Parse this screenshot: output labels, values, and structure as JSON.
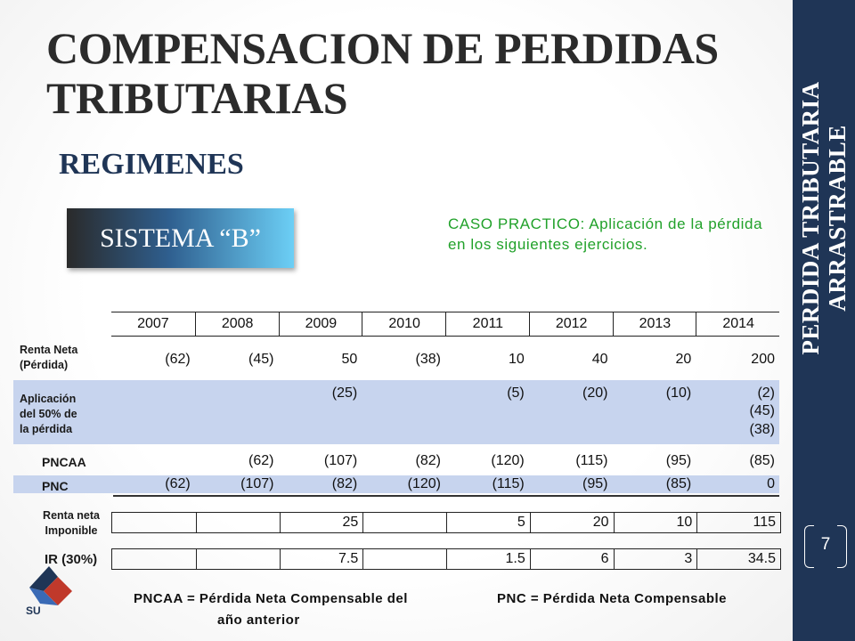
{
  "title": "COMPENSACION DE PERDIDAS TRIBUTARIAS",
  "subtitle": "REGIMENES",
  "sistema_label": "SISTEMA “B”",
  "caso_text": "CASO PRACTICO: Aplicación de la pérdida en los siguientes ejercicios.",
  "sidebar": {
    "line1": "PERDIDA TRIBUTARIA",
    "line2": "ARRASTRABLE",
    "page_number": "7"
  },
  "table": {
    "years": [
      "2007",
      "2008",
      "2009",
      "2010",
      "2011",
      "2012",
      "2013",
      "2014"
    ],
    "rows": {
      "renta_neta": {
        "label_line1": "Renta Neta",
        "label_line2": "(Pérdida)",
        "values": [
          "(62)",
          "(45)",
          "50",
          "(38)",
          "10",
          "40",
          "20",
          "200"
        ]
      },
      "aplicacion": {
        "label_line1": "Aplicación",
        "label_line2": "del 50% de",
        "label_line3": "la pérdida",
        "values": [
          "",
          "",
          "(25)",
          "",
          "(5)",
          "(20)",
          "(10)",
          "(2)"
        ],
        "extra_2014": [
          "(45)",
          "(38)"
        ]
      },
      "pncaa": {
        "label": "PNCAA",
        "values": [
          "",
          "(62)",
          "(107)",
          "(82)",
          "(120)",
          "(115)",
          "(95)",
          "(85)"
        ]
      },
      "pnc": {
        "label": "PNC",
        "values": [
          "(62)",
          "(107)",
          "(82)",
          "(120)",
          "(115)",
          "(95)",
          "(85)",
          "0"
        ]
      },
      "renta_imponible": {
        "label_line1": "Renta neta",
        "label_line2": "Imponible",
        "values": [
          "",
          "",
          "25",
          "",
          "5",
          "20",
          "10",
          "115"
        ]
      },
      "ir": {
        "label": "IR (30%)",
        "values": [
          "",
          "",
          "7.5",
          "",
          "1.5",
          "6",
          "3",
          "34.5"
        ]
      }
    }
  },
  "footnotes": {
    "pncaa_line1": "PNCAA =  Pérdida Neta Compensable del",
    "pncaa_line2": "año anterior",
    "pnc": "PNC = Pérdida Neta Compensable"
  },
  "logo_text": "SU",
  "colors": {
    "sidebar": "#1f3556",
    "band": "#c7d4ee",
    "caso_text": "#21a12a",
    "subtitle": "#1f3556"
  }
}
